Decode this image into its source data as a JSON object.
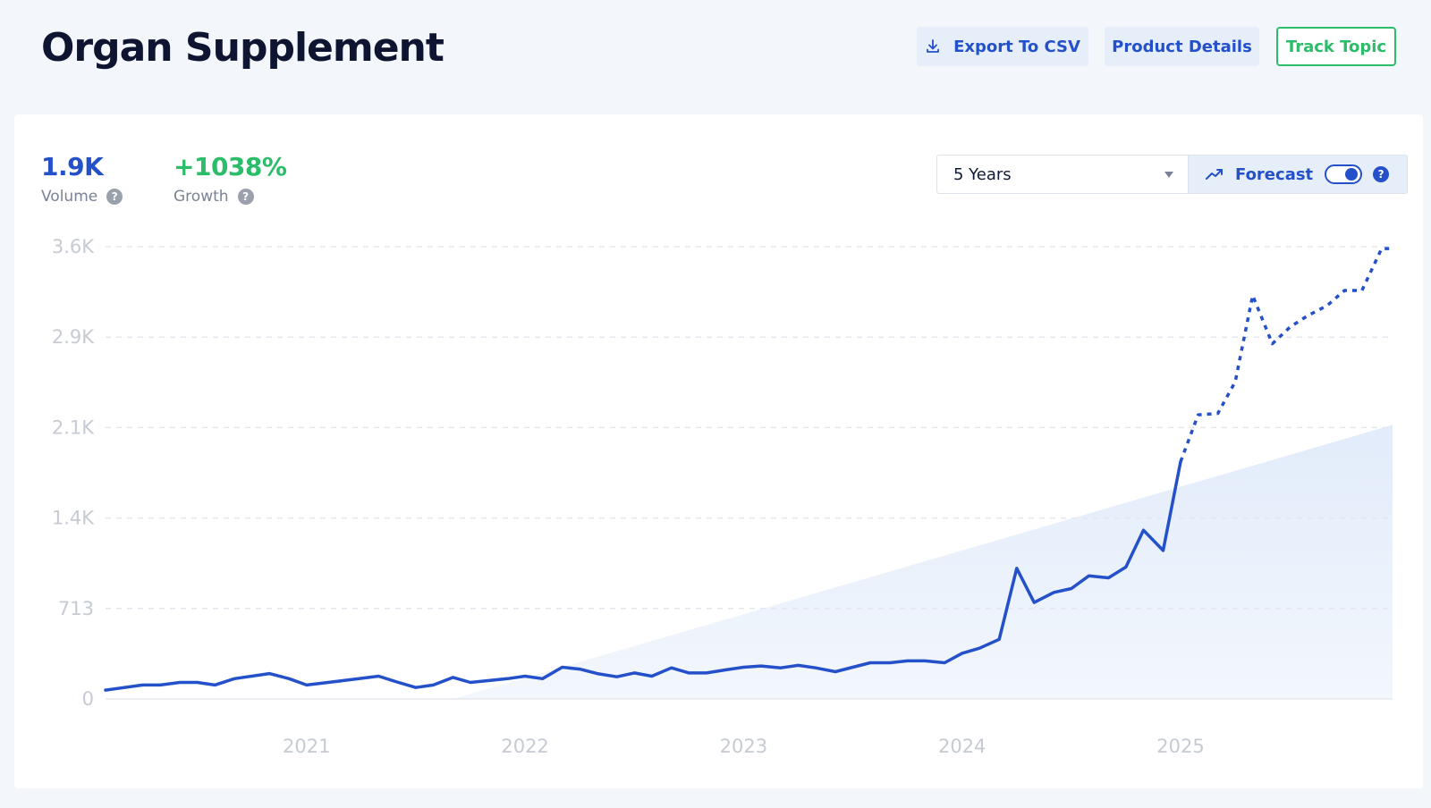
{
  "page": {
    "title": "Organ Supplement"
  },
  "toolbar": {
    "export_label": "Export To CSV",
    "details_label": "Product Details",
    "track_label": "Track Topic"
  },
  "stats": {
    "volume_value": "1.9K",
    "volume_label": "Volume",
    "growth_value": "+1038%",
    "growth_label": "Growth"
  },
  "controls": {
    "range_value": "5 Years",
    "forecast_label": "Forecast",
    "forecast_enabled": true
  },
  "icons": {
    "export": "download-icon",
    "forecast": "trend-up-icon",
    "help": "question-circle-icon",
    "range_caret": "caret-down-icon"
  },
  "colors": {
    "accent": "#2451c9",
    "growth": "#2cbd6a",
    "trend_fill": "#dce8f9"
  },
  "chart_data": {
    "type": "line",
    "title": "",
    "xlabel": "",
    "ylabel": "",
    "y_ticks": [
      "0",
      "713",
      "1.4K",
      "2.1K",
      "2.9K",
      "3.6K"
    ],
    "y_tick_values": [
      0,
      713,
      1426,
      2139,
      2852,
      3565
    ],
    "ylim": [
      0,
      3565
    ],
    "x_ticks": [
      "2021",
      "2022",
      "2023",
      "2024",
      "2025"
    ],
    "x_tick_values": [
      2021.0,
      2022.0,
      2023.0,
      2024.0,
      2025.0
    ],
    "xlim": [
      2020.08,
      2025.97
    ],
    "grid": true,
    "legend": "none",
    "series": [
      {
        "style": "solid",
        "points": [
          [
            2020.08,
            70
          ],
          [
            2020.25,
            110
          ],
          [
            2020.33,
            110
          ],
          [
            2020.42,
            130
          ],
          [
            2020.5,
            130
          ],
          [
            2020.58,
            110
          ],
          [
            2020.67,
            160
          ],
          [
            2020.83,
            200
          ],
          [
            2020.92,
            160
          ],
          [
            2021.0,
            110
          ],
          [
            2021.17,
            145
          ],
          [
            2021.33,
            180
          ],
          [
            2021.42,
            130
          ],
          [
            2021.5,
            90
          ],
          [
            2021.58,
            110
          ],
          [
            2021.67,
            170
          ],
          [
            2021.75,
            130
          ],
          [
            2021.92,
            160
          ],
          [
            2022.0,
            180
          ],
          [
            2022.08,
            160
          ],
          [
            2022.17,
            250
          ],
          [
            2022.25,
            235
          ],
          [
            2022.33,
            200
          ],
          [
            2022.42,
            175
          ],
          [
            2022.5,
            205
          ],
          [
            2022.58,
            180
          ],
          [
            2022.67,
            245
          ],
          [
            2022.75,
            205
          ],
          [
            2022.83,
            205
          ],
          [
            2022.92,
            230
          ],
          [
            2023.0,
            250
          ],
          [
            2023.08,
            260
          ],
          [
            2023.17,
            245
          ],
          [
            2023.25,
            265
          ],
          [
            2023.33,
            245
          ],
          [
            2023.42,
            215
          ],
          [
            2023.5,
            250
          ],
          [
            2023.58,
            285
          ],
          [
            2023.67,
            285
          ],
          [
            2023.75,
            300
          ],
          [
            2023.83,
            300
          ],
          [
            2023.92,
            285
          ],
          [
            2024.0,
            360
          ],
          [
            2024.08,
            400
          ],
          [
            2024.17,
            470
          ],
          [
            2024.25,
            1030
          ],
          [
            2024.33,
            760
          ],
          [
            2024.42,
            840
          ],
          [
            2024.5,
            870
          ],
          [
            2024.58,
            970
          ],
          [
            2024.67,
            955
          ],
          [
            2024.75,
            1040
          ],
          [
            2024.83,
            1330
          ],
          [
            2024.92,
            1170
          ],
          [
            2025.0,
            1870
          ]
        ]
      },
      {
        "style": "dashed",
        "points": [
          [
            2025.0,
            1870
          ],
          [
            2025.08,
            2240
          ],
          [
            2025.17,
            2250
          ],
          [
            2025.25,
            2500
          ],
          [
            2025.33,
            3180
          ],
          [
            2025.42,
            2800
          ],
          [
            2025.5,
            2930
          ],
          [
            2025.58,
            3020
          ],
          [
            2025.67,
            3100
          ],
          [
            2025.75,
            3220
          ],
          [
            2025.83,
            3220
          ],
          [
            2025.92,
            3550
          ],
          [
            2025.97,
            3550
          ]
        ]
      }
    ],
    "trend_band": [
      [
        2021.67,
        0
      ],
      [
        2025.97,
        2160
      ]
    ]
  }
}
